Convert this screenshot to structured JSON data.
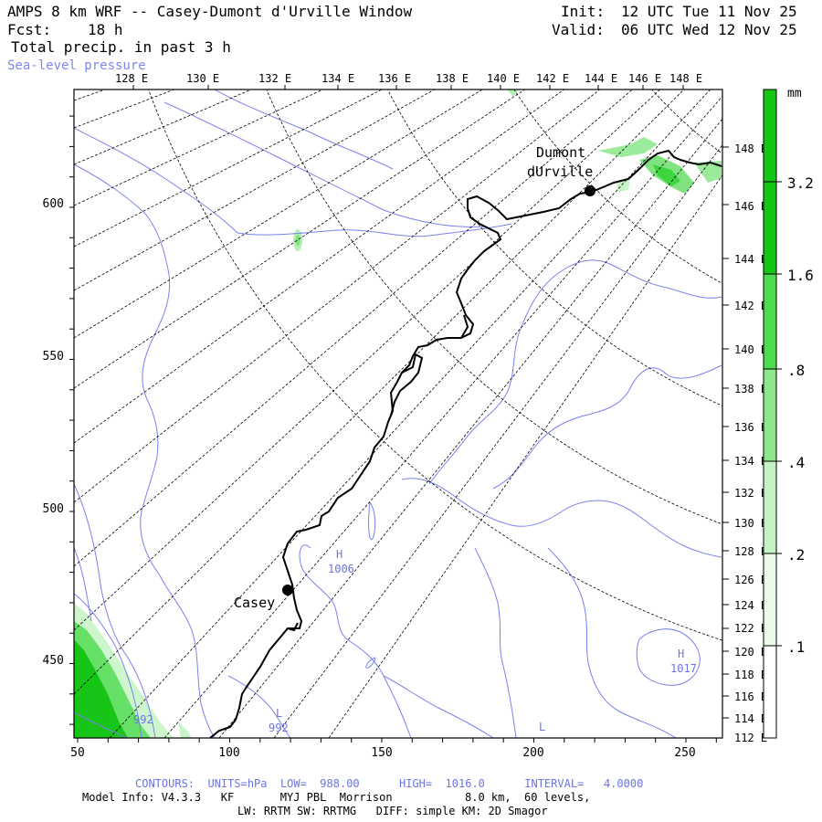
{
  "header": {
    "title": "AMPS 8 km WRF -- Casey-Dumont d'Urville Window",
    "forecast_label": "Fcst:",
    "forecast_value": "18 h",
    "field": "Total precip. in past 3 h",
    "contour_field": "Sea-level pressure",
    "init_label": "Init:",
    "init_value": "12 UTC Tue 11 Nov 25",
    "valid_label": "Valid:",
    "valid_value": "06 UTC Wed 12 Nov 25"
  },
  "map": {
    "top_lon_labels": [
      "128 E",
      "130 E",
      "132 E",
      "134 E",
      "136 E",
      "138 E",
      "140 E",
      "142 E",
      "144 E",
      "146 E",
      "148 E"
    ],
    "right_lat_labels": [
      "148 E",
      "146 E",
      "144 E",
      "142 E",
      "140 E",
      "138 E",
      "136 E",
      "134 E",
      "132 E",
      "130 E",
      "128 E",
      "126 E",
      "124 E",
      "122 E",
      "120 E",
      "118 E",
      "116 E",
      "114 E",
      "112 E"
    ],
    "left_y_ticks": [
      "600",
      "550",
      "500",
      "450"
    ],
    "bottom_x_ticks": [
      "50",
      "100",
      "150",
      "200",
      "250"
    ],
    "stations": [
      {
        "name": "Dumont",
        "name2": "dUrville"
      },
      {
        "name": "Casey"
      }
    ],
    "pressure_labels": [
      {
        "kind": "H",
        "value": "1006"
      },
      {
        "kind": "H",
        "value": "1017"
      },
      {
        "kind": "L",
        "value": "992"
      },
      {
        "kind": "L",
        "value": ""
      },
      {
        "kind": "",
        "value": "992"
      }
    ],
    "colors": {
      "contour": "#7a82ec",
      "coast": "#000000",
      "precip_light": "#c8f5c8",
      "precip_mid": "#66e066",
      "precip_dark": "#16c516"
    }
  },
  "colorbar": {
    "unit": "mm",
    "levels": [
      ".1",
      ".2",
      ".4",
      ".8",
      "1.6",
      "3.2"
    ],
    "colors": [
      "#ffffff",
      "#eafbea",
      "#c3f3c3",
      "#8de88d",
      "#4fdb4f",
      "#16c516"
    ]
  },
  "footer": {
    "contours_line": "CONTOURS:  UNITS=hPa  LOW=  988.00      HIGH=  1016.0      INTERVAL=   4.0000",
    "model_line": "Model Info: V4.3.3   KF       MYJ PBL  Morrison           8.0 km,  60 levels,",
    "physics_line": "LW: RRTM SW: RRTMG   DIFF: simple KM: 2D Smagor"
  }
}
